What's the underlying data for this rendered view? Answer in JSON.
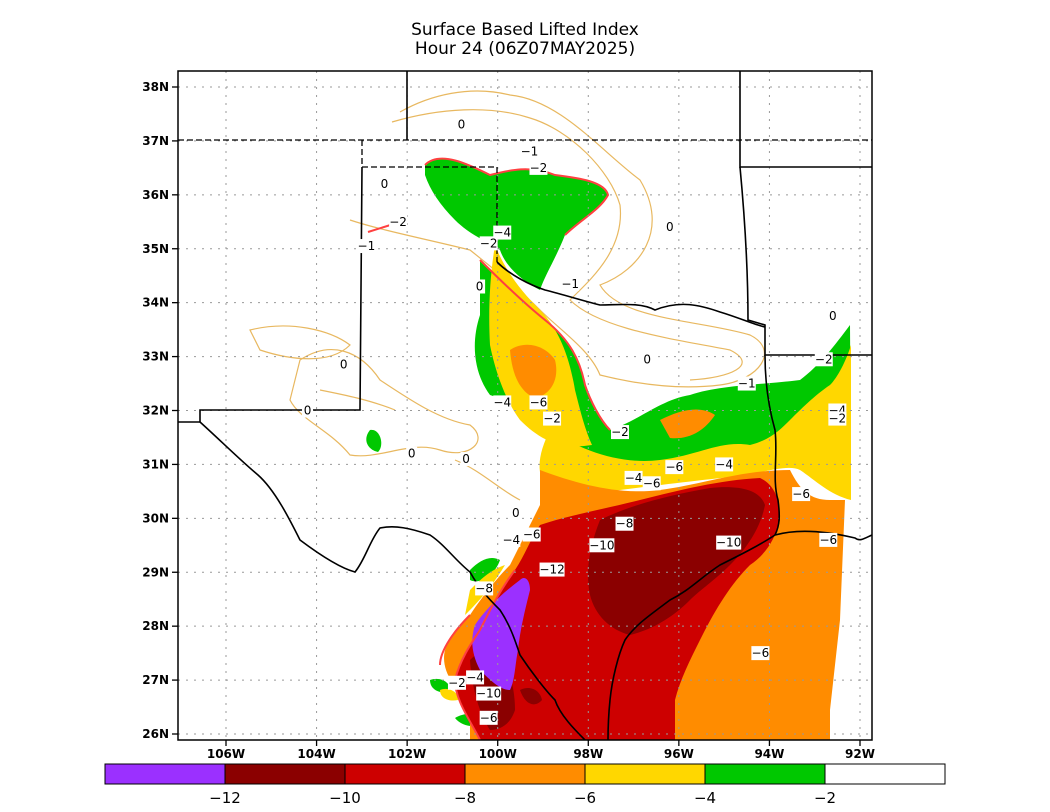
{
  "title": {
    "line1": "Surface Based Lifted Index",
    "line2": "Hour 24 (06Z07MAY2025)"
  },
  "axes": {
    "lat_labels": [
      "38N",
      "37N",
      "36N",
      "35N",
      "34N",
      "33N",
      "32N",
      "31N",
      "30N",
      "29N",
      "28N",
      "27N",
      "26N"
    ],
    "lon_labels": [
      "106W",
      "104W",
      "102W",
      "100W",
      "98W",
      "96W",
      "94W",
      "92W"
    ],
    "grid": "dotted"
  },
  "colorbar": {
    "colors": [
      "#9b30ff",
      "#8b0000",
      "#cd0000",
      "#ff8c00",
      "#ffd700",
      "#00c800",
      "#ffffff"
    ],
    "labels": [
      "−12",
      "−10",
      "−8",
      "−6",
      "−4",
      "−2"
    ]
  },
  "contour_labels": [
    {
      "t": "0",
      "lon": -100.8,
      "lat": 37.3
    },
    {
      "t": "−1",
      "lon": -99.3,
      "lat": 36.8
    },
    {
      "t": "−2",
      "lon": -99.1,
      "lat": 36.5
    },
    {
      "t": "0",
      "lon": -102.5,
      "lat": 36.2
    },
    {
      "t": "−2",
      "lon": -102.2,
      "lat": 35.5
    },
    {
      "t": "0",
      "lon": -96.2,
      "lat": 35.4
    },
    {
      "t": "−4",
      "lon": -99.9,
      "lat": 35.3
    },
    {
      "t": "−2",
      "lon": -100.2,
      "lat": 35.1
    },
    {
      "t": "−1",
      "lon": -102.9,
      "lat": 35.05
    },
    {
      "t": "−1",
      "lon": -98.4,
      "lat": 34.35
    },
    {
      "t": "0",
      "lon": -100.4,
      "lat": 34.3
    },
    {
      "t": "0",
      "lon": -92.6,
      "lat": 33.75
    },
    {
      "t": "0",
      "lon": -96.7,
      "lat": 32.95
    },
    {
      "t": "0",
      "lon": -103.4,
      "lat": 32.85
    },
    {
      "t": "−2",
      "lon": -92.8,
      "lat": 32.95
    },
    {
      "t": "−1",
      "lon": -94.5,
      "lat": 32.5
    },
    {
      "t": "0",
      "lon": -104.2,
      "lat": 32.0
    },
    {
      "t": "−4",
      "lon": -99.9,
      "lat": 32.15
    },
    {
      "t": "−6",
      "lon": -99.1,
      "lat": 32.15
    },
    {
      "t": "−2",
      "lon": -98.8,
      "lat": 31.85
    },
    {
      "t": "−4",
      "lon": -92.5,
      "lat": 32.0
    },
    {
      "t": "−2",
      "lon": -92.5,
      "lat": 31.85
    },
    {
      "t": "−2",
      "lon": -97.3,
      "lat": 31.6
    },
    {
      "t": "0",
      "lon": -101.9,
      "lat": 31.2
    },
    {
      "t": "0",
      "lon": -100.7,
      "lat": 31.1
    },
    {
      "t": "−6",
      "lon": -96.1,
      "lat": 30.95
    },
    {
      "t": "−4",
      "lon": -95.0,
      "lat": 31.0
    },
    {
      "t": "−4",
      "lon": -97.0,
      "lat": 30.75
    },
    {
      "t": "−6",
      "lon": -96.6,
      "lat": 30.65
    },
    {
      "t": "−6",
      "lon": -93.3,
      "lat": 30.45
    },
    {
      "t": "0",
      "lon": -99.6,
      "lat": 30.1
    },
    {
      "t": "−8",
      "lon": -97.2,
      "lat": 29.9
    },
    {
      "t": "−6",
      "lon": -99.25,
      "lat": 29.7
    },
    {
      "t": "−4",
      "lon": -99.7,
      "lat": 29.6
    },
    {
      "t": "−10",
      "lon": -97.7,
      "lat": 29.5
    },
    {
      "t": "−10",
      "lon": -94.9,
      "lat": 29.55
    },
    {
      "t": "−6",
      "lon": -92.7,
      "lat": 29.6
    },
    {
      "t": "−12",
      "lon": -98.8,
      "lat": 29.05
    },
    {
      "t": "−8",
      "lon": -100.3,
      "lat": 28.7
    },
    {
      "t": "−6",
      "lon": -94.2,
      "lat": 27.5
    },
    {
      "t": "−2",
      "lon": -100.9,
      "lat": 26.95
    },
    {
      "t": "−4",
      "lon": -100.5,
      "lat": 27.05
    },
    {
      "t": "−10",
      "lon": -100.2,
      "lat": 26.75
    },
    {
      "t": "−6",
      "lon": -100.2,
      "lat": 26.3
    }
  ]
}
